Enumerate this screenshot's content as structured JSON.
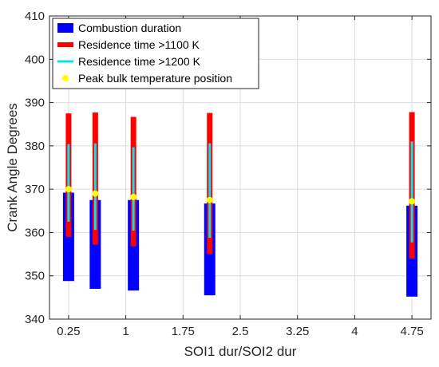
{
  "chart_data": {
    "type": "bar",
    "xlabel": "SOI1 dur/SOI2 dur",
    "ylabel": "Crank Angle Degrees",
    "xlim": [
      0,
      5
    ],
    "ylim": [
      340,
      410
    ],
    "xticks": [
      0.25,
      1,
      1.75,
      2.5,
      3.25,
      4,
      4.75
    ],
    "xtick_labels": [
      "0.25",
      "1",
      "1.75",
      "2.5",
      "3.25",
      "4",
      "4.75"
    ],
    "yticks": [
      340,
      350,
      360,
      370,
      380,
      390,
      400,
      410
    ],
    "grid": true,
    "legend_position": "top-left",
    "colors": {
      "combustion": "#0000ff",
      "res1100": "#ff0000",
      "res1200": "#00e5ee",
      "peak": "#ffff00"
    },
    "series": [
      {
        "name": "Combustion duration",
        "x": [
          0.25,
          0.6,
          1.1,
          2.1,
          4.75
        ],
        "start": [
          348.8,
          347.0,
          346.6,
          345.5,
          345.2
        ],
        "end": [
          369.2,
          367.5,
          367.5,
          366.7,
          366.2
        ]
      },
      {
        "name": "Residence time >1100 K",
        "x": [
          0.25,
          0.6,
          1.1,
          2.1,
          4.75
        ],
        "start": [
          359.0,
          357.2,
          356.8,
          355.0,
          354.0
        ],
        "end": [
          387.5,
          387.7,
          386.7,
          387.6,
          387.8
        ]
      },
      {
        "name": "Residence time >1200 K",
        "x": [
          0.25,
          0.6,
          1.1,
          2.1,
          4.75
        ],
        "start": [
          362.5,
          360.6,
          360.4,
          358.8,
          357.7
        ],
        "end": [
          380.4,
          380.6,
          379.7,
          380.6,
          381.0
        ]
      },
      {
        "name": "Peak bulk temperature position",
        "x": [
          0.25,
          0.6,
          1.1,
          2.1,
          4.75
        ],
        "y": [
          370.0,
          369.0,
          368.2,
          367.5,
          367.2
        ]
      }
    ]
  }
}
